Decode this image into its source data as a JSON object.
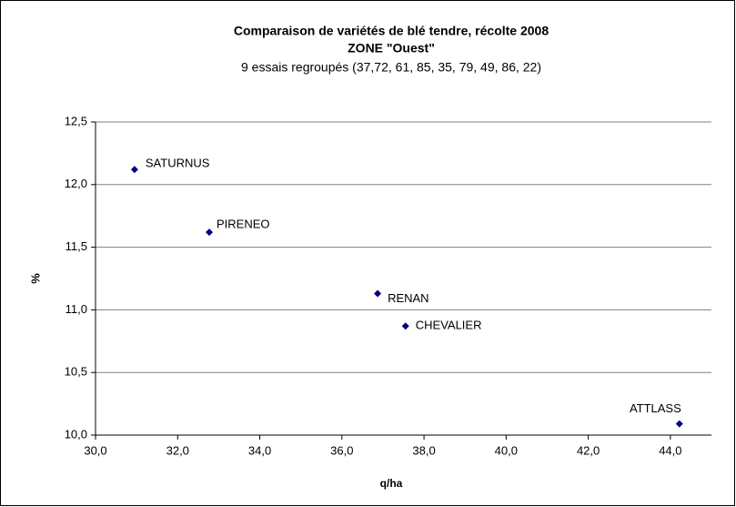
{
  "chart_data": {
    "type": "scatter",
    "title": "Comparaison de variétés de blé tendre, récolte 2008",
    "title2": "ZONE \"Ouest\"",
    "subtitle": "9 essais regroupés (37,72, 61, 85, 35, 79, 49, 86, 22)",
    "x_label": "q/ha",
    "y_label": "%",
    "series": [
      {
        "name": null,
        "color": "#000080",
        "labels": [
          "SATURNUS",
          "PIRENEO",
          "RENAN",
          "CHEVALIER",
          "ATTLASS"
        ],
        "x": [
          30.95,
          32.77,
          36.87,
          37.55,
          44.22
        ],
        "values": [
          12.12,
          11.62,
          11.13,
          10.87,
          10.09
        ]
      }
    ],
    "xlim": [
      30,
      45
    ],
    "xticks": [
      {
        "value": 30,
        "label": "30,0"
      },
      {
        "value": 32,
        "label": "32,0"
      },
      {
        "value": 34,
        "label": "34,0"
      },
      {
        "value": 36,
        "label": "36,0"
      },
      {
        "value": 38,
        "label": "38,0"
      },
      {
        "value": 40,
        "label": "40,0"
      },
      {
        "value": 42,
        "label": "42,0"
      },
      {
        "value": 44,
        "label": "44,0"
      }
    ],
    "ylim": [
      10,
      12.5
    ],
    "yticks": [
      {
        "value": 10,
        "label": "10,0"
      },
      {
        "value": 10.5,
        "label": "10,5"
      },
      {
        "value": 11,
        "label": "11,0"
      },
      {
        "value": 11.5,
        "label": "11,5"
      },
      {
        "value": 12,
        "label": "12,0"
      },
      {
        "value": 12.5,
        "label": "12,5"
      }
    ],
    "grid": true
  }
}
